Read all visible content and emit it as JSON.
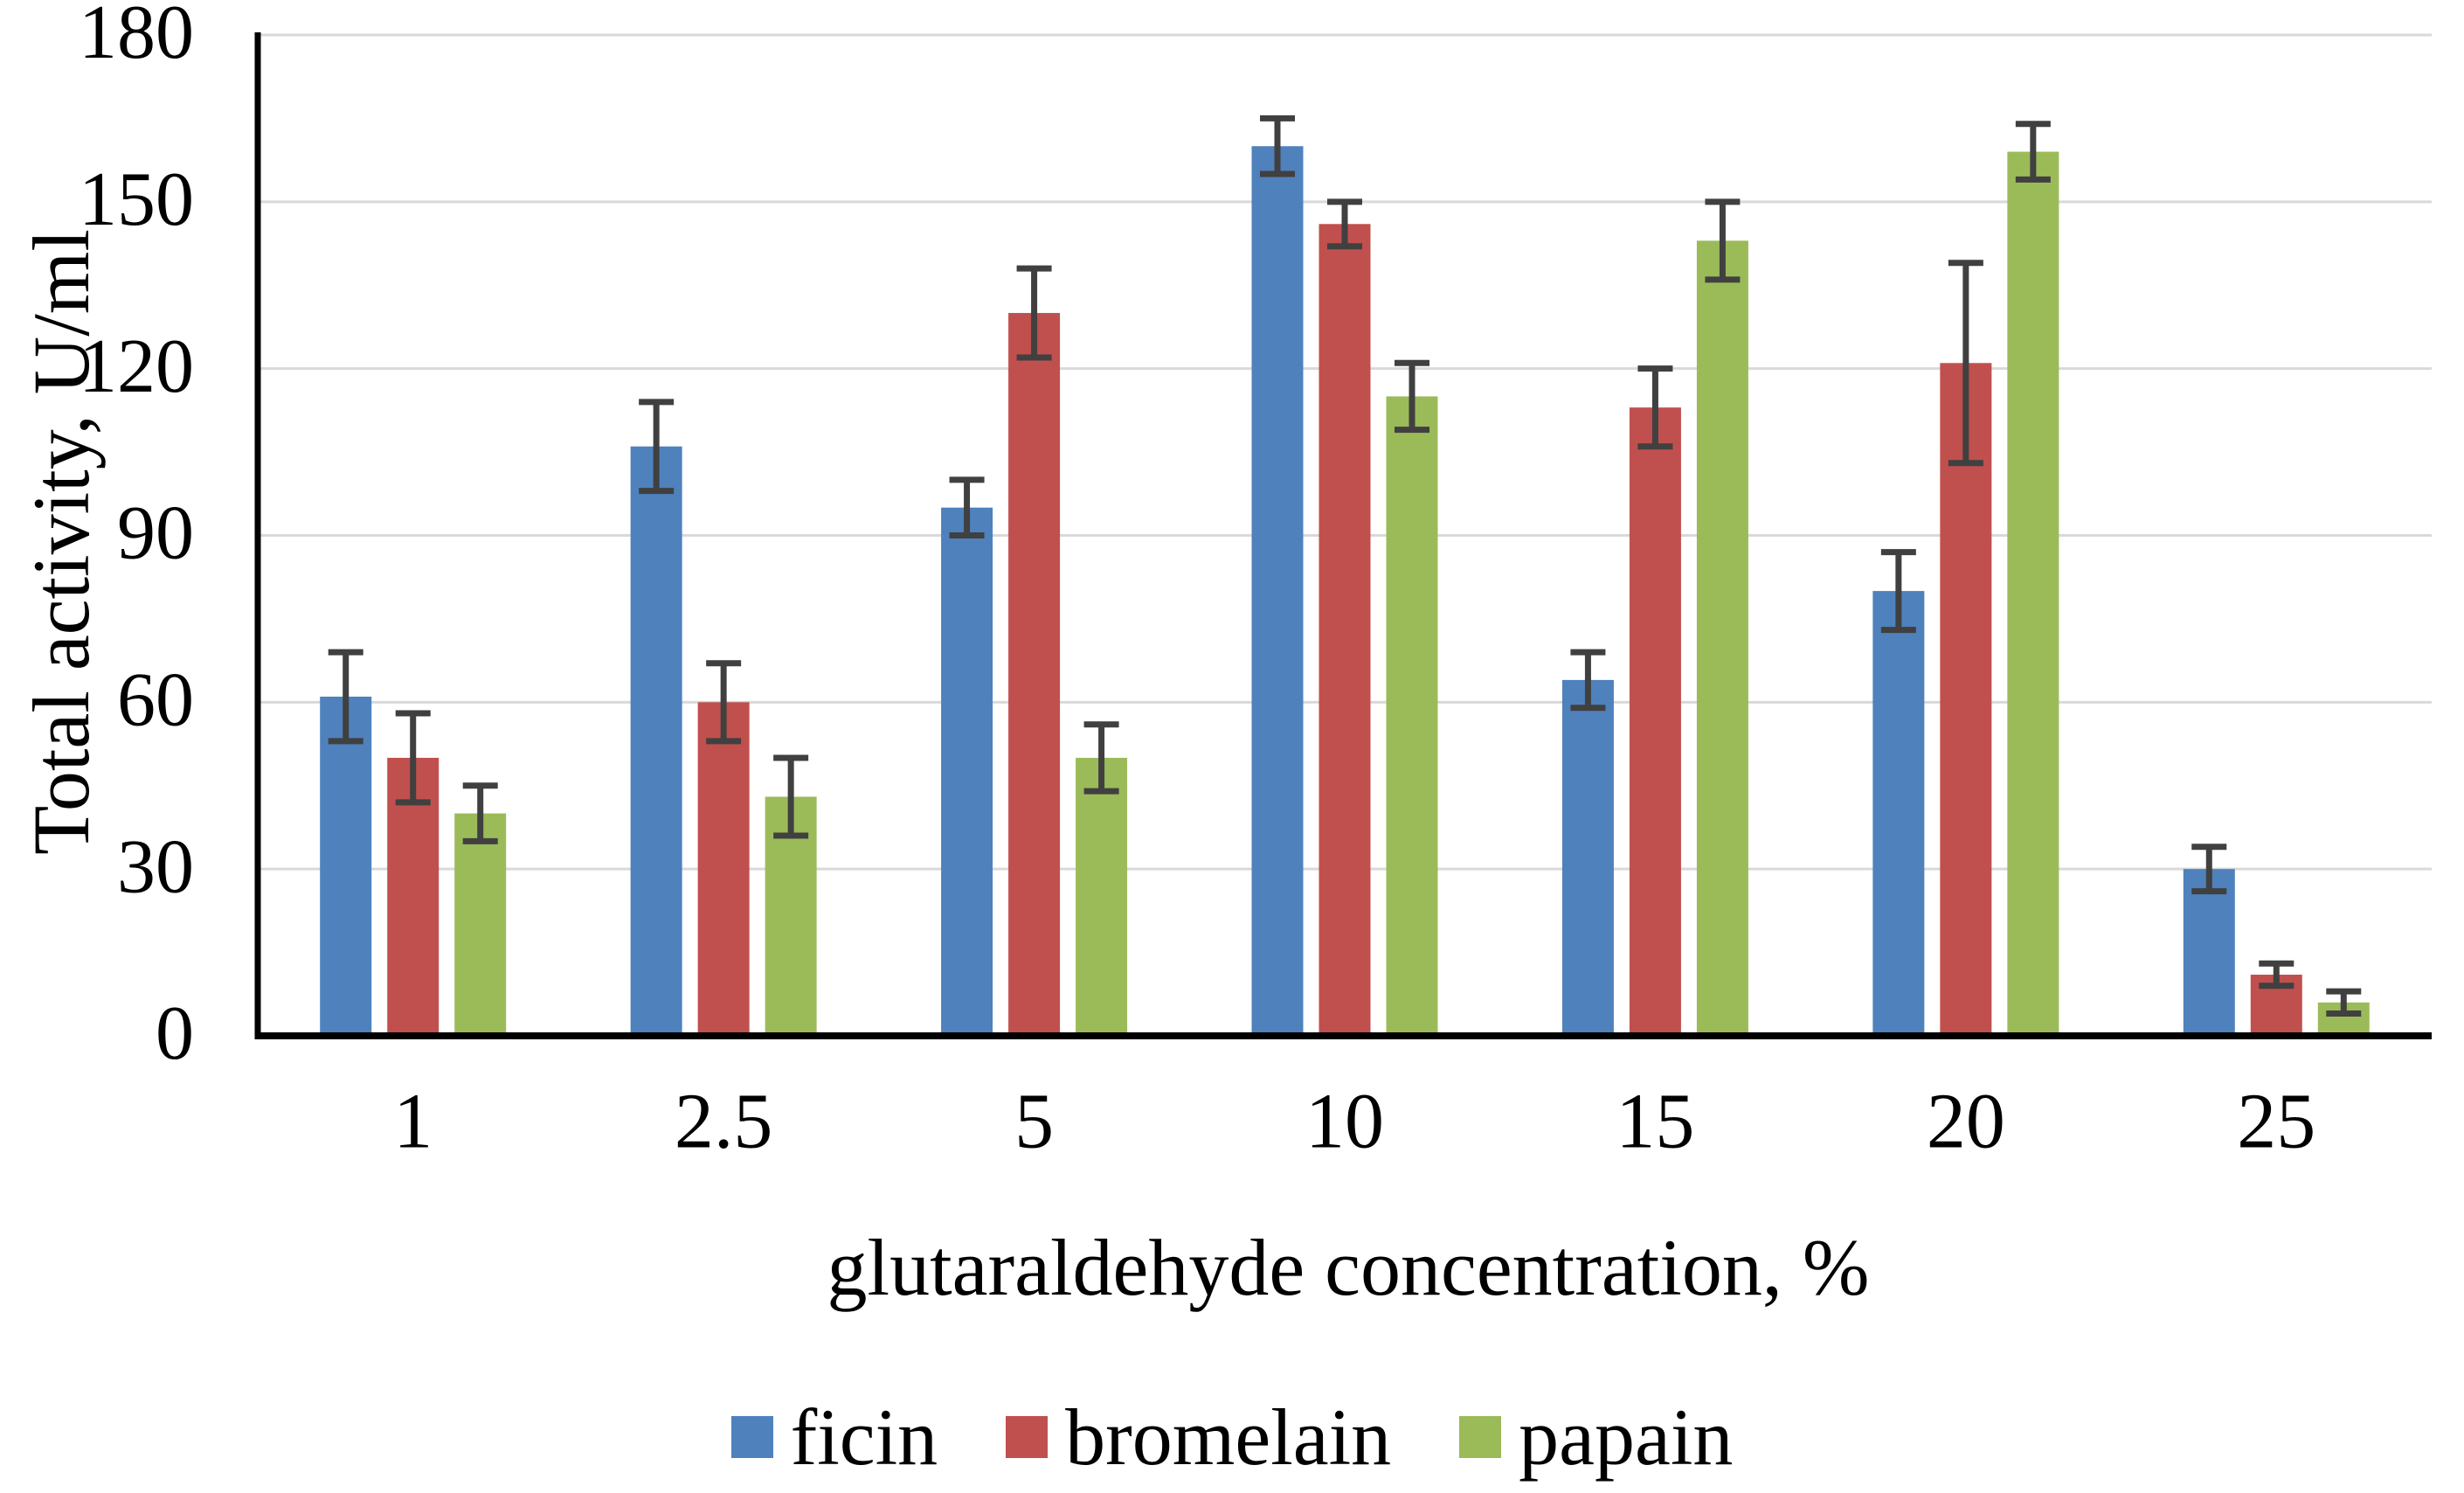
{
  "chart_data": {
    "type": "bar",
    "title": "",
    "xlabel": "glutaraldehyde concentration, %",
    "ylabel": "Total activity, U/ml",
    "categories": [
      "1",
      "2.5",
      "5",
      "10",
      "15",
      "20",
      "25"
    ],
    "series": [
      {
        "name": "ficin",
        "color": "#4F81BD",
        "values": [
          61,
          106,
          95,
          160,
          64,
          80,
          30
        ],
        "errors": [
          8,
          8,
          5,
          5,
          5,
          7,
          4
        ]
      },
      {
        "name": "bromelain",
        "color": "#C0504D",
        "values": [
          50,
          60,
          130,
          146,
          113,
          121,
          11
        ],
        "errors": [
          8,
          7,
          8,
          4,
          7,
          18,
          2
        ]
      },
      {
        "name": "papain",
        "color": "#9BBB59",
        "values": [
          40,
          43,
          50,
          115,
          143,
          159,
          6
        ],
        "errors": [
          5,
          7,
          6,
          6,
          7,
          5,
          2
        ]
      }
    ],
    "ylim": [
      0,
      180
    ],
    "ytick_step": 30,
    "yticks": [
      "0",
      "30",
      "60",
      "90",
      "120",
      "150",
      "180"
    ],
    "grid": true,
    "legend_position": "bottom",
    "colors": {
      "grid": "#D9D9D9",
      "axis": "#000000",
      "error_bar": "#404040",
      "text": "#000000",
      "background": "#FFFFFF"
    }
  }
}
